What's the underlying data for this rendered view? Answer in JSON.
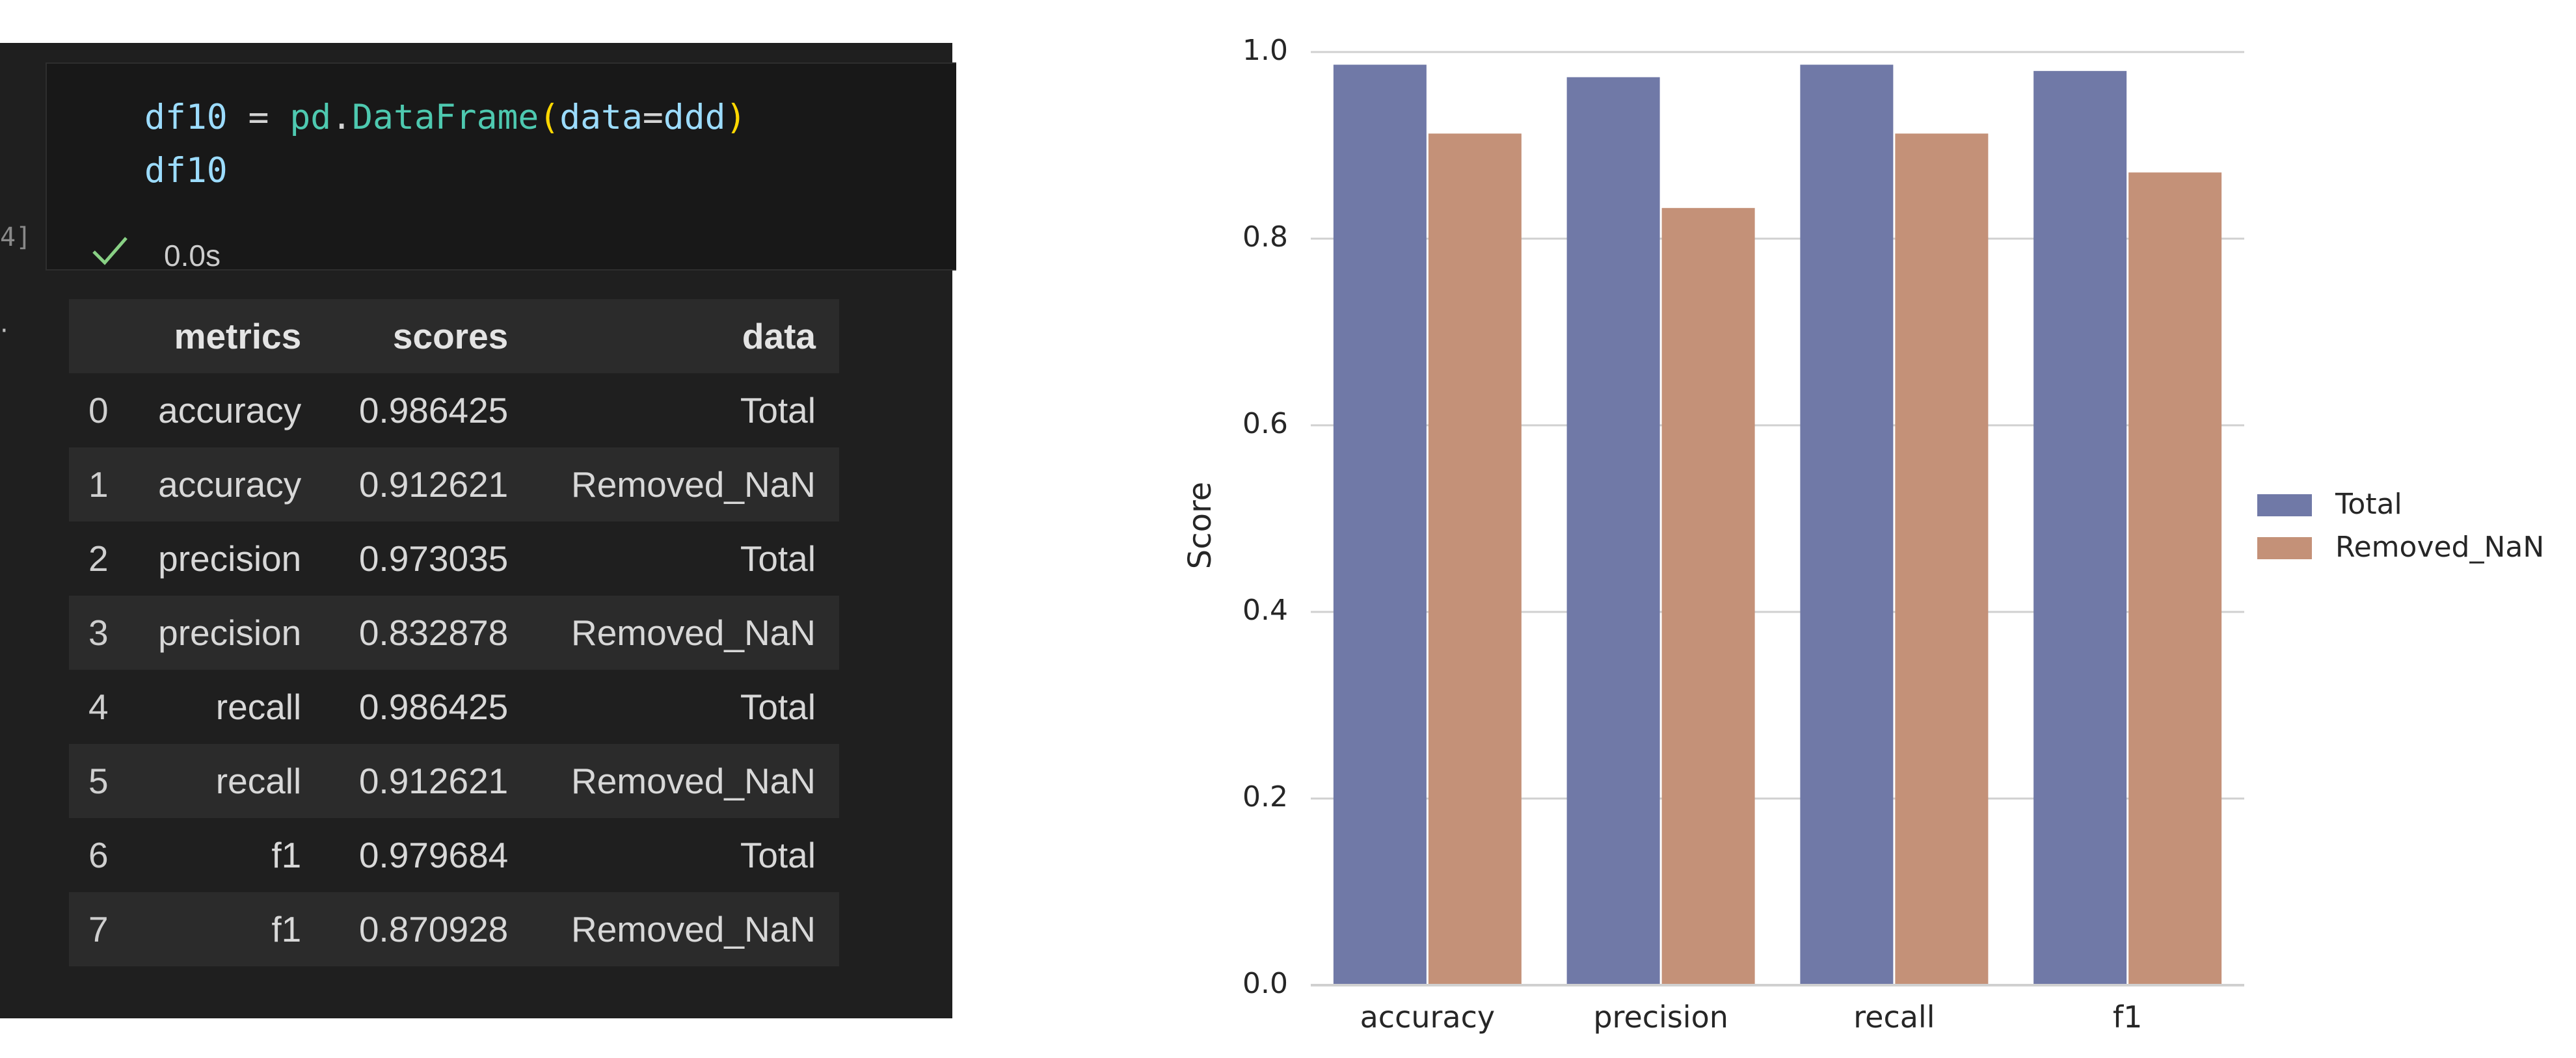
{
  "notebook": {
    "exec_count": "4]",
    "collapse_marker": "·",
    "code": {
      "line1": {
        "var": "df10",
        "op": " = ",
        "mod": "pd",
        "dot": ".",
        "cls": "DataFrame",
        "lp": "(",
        "arg": "data",
        "eq": "=",
        "val": "ddd",
        "rp": ")"
      },
      "line2": "df10"
    },
    "status": {
      "icon": "check-icon",
      "time": "0.0s",
      "color": "#89d185"
    },
    "table": {
      "columns": [
        "",
        "metrics",
        "scores",
        "data"
      ],
      "rows": [
        [
          "0",
          "accuracy",
          "0.986425",
          "Total"
        ],
        [
          "1",
          "accuracy",
          "0.912621",
          "Removed_NaN"
        ],
        [
          "2",
          "precision",
          "0.973035",
          "Total"
        ],
        [
          "3",
          "precision",
          "0.832878",
          "Removed_NaN"
        ],
        [
          "4",
          "recall",
          "0.986425",
          "Total"
        ],
        [
          "5",
          "recall",
          "0.912621",
          "Removed_NaN"
        ],
        [
          "6",
          "f1",
          "0.979684",
          "Total"
        ],
        [
          "7",
          "f1",
          "0.870928",
          "Removed_NaN"
        ]
      ]
    }
  },
  "chart_data": {
    "type": "bar",
    "categories": [
      "accuracy",
      "precision",
      "recall",
      "f1"
    ],
    "series": [
      {
        "name": "Total",
        "color": "#7079a7",
        "values": [
          0.986425,
          0.973035,
          0.986425,
          0.979684
        ]
      },
      {
        "name": "Removed_NaN",
        "color": "#c49178",
        "values": [
          0.912621,
          0.832878,
          0.912621,
          0.870928
        ]
      }
    ],
    "ylabel": "Score",
    "xlabel": "",
    "ylim": [
      0,
      1.0
    ],
    "yticks": [
      "0.0",
      "0.2",
      "0.4",
      "0.6",
      "0.8",
      "1.0"
    ],
    "grid": true,
    "legend": "right"
  }
}
